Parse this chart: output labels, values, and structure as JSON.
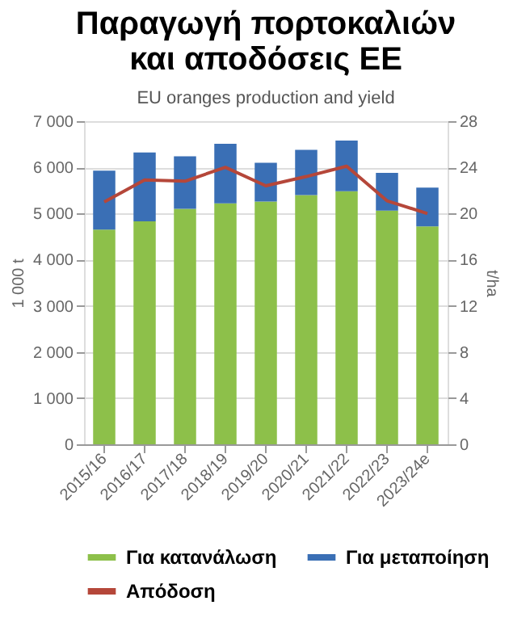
{
  "chart_data": {
    "type": "bar",
    "title": [
      "Παραγωγή πορτοκαλιών",
      "και αποδόσεις ΕΕ"
    ],
    "subtitle": "EU oranges production and yield",
    "categories": [
      "2015/16",
      "2016/17",
      "2017/18",
      "2018/19",
      "2019/20",
      "2020/21",
      "2021/22",
      "2022/23",
      "2023/24e"
    ],
    "stacked": true,
    "series": [
      {
        "name": "Για κατανάλωση",
        "color": "#8dc04a",
        "values": [
          4650,
          4830,
          5100,
          5220,
          5260,
          5400,
          5480,
          5060,
          4720
        ]
      },
      {
        "name": "Για μεταποίηση",
        "color": "#3a6fb5",
        "values": [
          1280,
          1490,
          1140,
          1290,
          840,
          980,
          1100,
          820,
          840
        ]
      },
      {
        "name": "Απόδοση",
        "type": "line",
        "axis": "y2",
        "color": "#b5473a",
        "values": [
          21,
          22.9,
          22.8,
          24,
          22.4,
          23.2,
          24.1,
          21.1,
          20
        ]
      }
    ],
    "ylabel": "1 000 t",
    "y2label": "t/ha",
    "ylim": [
      0,
      7000
    ],
    "yticks": [
      {
        "value": 0,
        "label": "0"
      },
      {
        "value": 1000,
        "label": "1 000"
      },
      {
        "value": 2000,
        "label": "2 000"
      },
      {
        "value": 3000,
        "label": "3 000"
      },
      {
        "value": 4000,
        "label": "4 000"
      },
      {
        "value": 5000,
        "label": "5 000"
      },
      {
        "value": 6000,
        "label": "6 000"
      },
      {
        "value": 7000,
        "label": "7 000"
      }
    ],
    "y2lim": [
      0,
      28
    ],
    "y2ticks": [
      0,
      4,
      8,
      12,
      16,
      20,
      24,
      28
    ],
    "grid": "y",
    "legend": "bottom"
  }
}
